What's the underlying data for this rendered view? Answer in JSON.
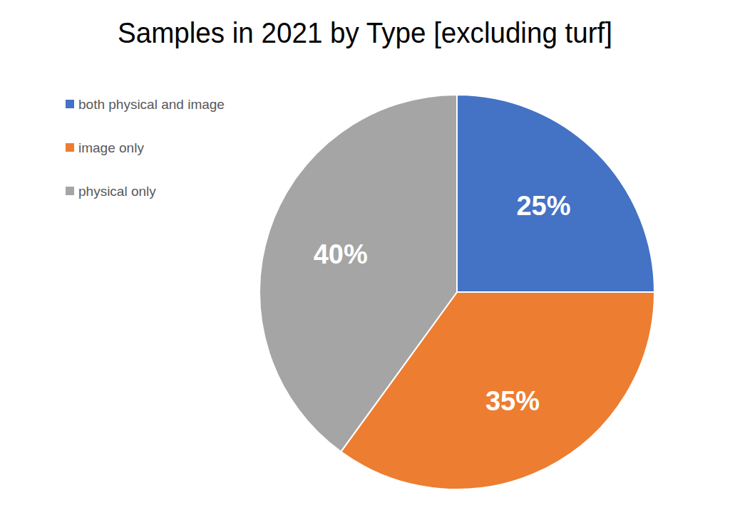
{
  "chart_data": {
    "type": "pie",
    "title": "Samples in 2021 by Type [excluding turf]",
    "categories": [
      "both physical and image",
      "image only",
      "physical only"
    ],
    "values": [
      25,
      35,
      40
    ],
    "value_labels": [
      "25%",
      "35%",
      "40%"
    ],
    "colors": [
      "#4472c4",
      "#ed7d31",
      "#a5a5a5"
    ],
    "data_labels": true,
    "legend": "top-left"
  }
}
